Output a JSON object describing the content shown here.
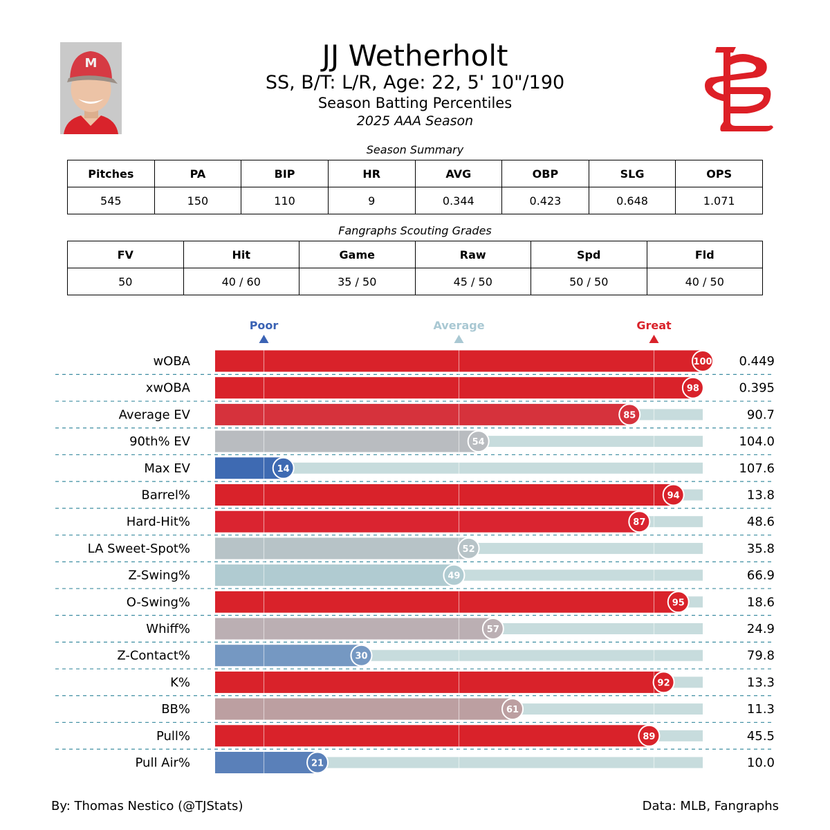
{
  "header": {
    "name": "JJ Wetherholt",
    "info": "SS, B/T: L/R, Age: 22, 5' 10\"/190",
    "subtitle": "Season Batting Percentiles",
    "season": "2025 AAA Season"
  },
  "summary": {
    "title": "Season Summary",
    "headers": [
      "Pitches",
      "PA",
      "BIP",
      "HR",
      "AVG",
      "OBP",
      "SLG",
      "OPS"
    ],
    "values": [
      "545",
      "150",
      "110",
      "9",
      "0.344",
      "0.423",
      "0.648",
      "1.071"
    ]
  },
  "grades": {
    "title": "Fangraphs Scouting Grades",
    "headers": [
      "FV",
      "Hit",
      "Game",
      "Raw",
      "Spd",
      "Fld"
    ],
    "values": [
      "50",
      "40 / 60",
      "35 / 50",
      "45 / 50",
      "50 / 50",
      "40 / 50"
    ]
  },
  "chart_data": {
    "type": "bar",
    "orientation": "horizontal",
    "xlim": [
      0,
      100
    ],
    "markers": [
      {
        "label": "Poor",
        "value": 10,
        "color": "#3b63b4"
      },
      {
        "label": "Average",
        "value": 50,
        "color": "#a9c8d3"
      },
      {
        "label": "Great",
        "value": 90,
        "color": "#d9222a"
      }
    ],
    "categories": [
      "wOBA",
      "xwOBA",
      "Average EV",
      "90th% EV",
      "Max EV",
      "Barrel%",
      "Hard-Hit%",
      "LA Sweet-Spot%",
      "Z-Swing%",
      "O-Swing%",
      "Whiff%",
      "Z-Contact%",
      "K%",
      "BB%",
      "Pull%",
      "Pull Air%"
    ],
    "percentiles": [
      100,
      98,
      85,
      54,
      14,
      94,
      87,
      52,
      49,
      95,
      57,
      30,
      92,
      61,
      89,
      21
    ],
    "stat_values": [
      "0.449",
      "0.395",
      "90.7",
      "104.0",
      "107.6",
      "13.8",
      "48.6",
      "35.8",
      "66.9",
      "18.6",
      "24.9",
      "79.8",
      "13.3",
      "11.3",
      "45.5",
      "10.0"
    ],
    "bar_colors": [
      "#d9222a",
      "#d9222a",
      "#d6323c",
      "#b9bcc0",
      "#3e6ab2",
      "#d9222a",
      "#da2430",
      "#b7c3c7",
      "#b0cbd1",
      "#d9222a",
      "#bbafb3",
      "#7598c2",
      "#d9222a",
      "#bc9fa1",
      "#d9222a",
      "#5a80b9"
    ],
    "track_color": "#c7dcdd",
    "separator_color": "#3d8da1"
  },
  "footer": {
    "left": "By: Thomas Nestico (@TJStats)",
    "right": "Data: MLB, Fangraphs"
  },
  "colors": {
    "cardinals_red": "#dd1f26",
    "cap_red": "#d63a43"
  },
  "icons": {
    "photo": "player-headshot",
    "logo": "stl-cardinals-logo"
  }
}
